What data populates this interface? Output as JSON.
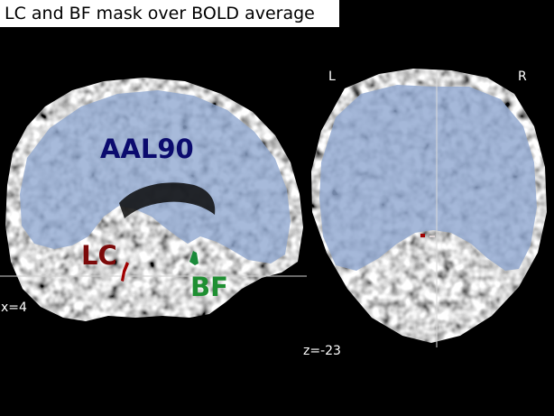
{
  "title": "LC and BF mask over BOLD average",
  "sagittal": {
    "coord_label": "x=4",
    "labels": {
      "aal": "AAL90",
      "lc": "LC",
      "bf": "BF"
    }
  },
  "axial": {
    "coord_label": "z=-23",
    "left_label": "L",
    "right_label": "R"
  },
  "colors": {
    "background": "#000000",
    "aal_overlay": "#8ea6cf",
    "aal_label": "#0b0b6e",
    "lc_mask": "#a00000",
    "lc_label": "#7c0a0a",
    "bf_mask": "#1a8a3a",
    "bf_label": "#1e8f32"
  }
}
